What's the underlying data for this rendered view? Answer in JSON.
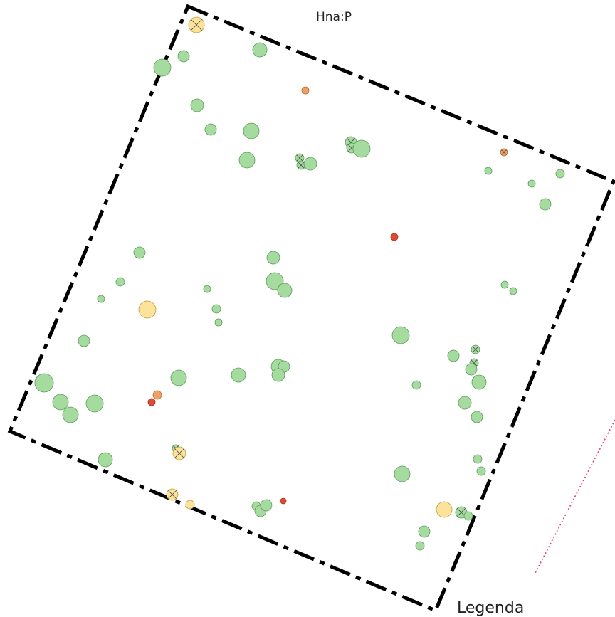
{
  "labels": {
    "plot_code": "Hna:P",
    "legend_title": "Legenda"
  },
  "colors": {
    "background": "#ffffff",
    "boundary": "#000000",
    "healthy_fill": "#a6dba0",
    "healthy_stroke": "#5c9a58",
    "yellow_fill": "#fde39a",
    "yellow_stroke": "#b89a40",
    "orange_fill": "#f0a062",
    "red_fill": "#e34a33",
    "dotted_line": "#e04070",
    "cross": "#555555"
  },
  "tree_categories": [
    "healthy",
    "healthy-crossed",
    "yellow",
    "yellow-crossed",
    "orange",
    "orange-crossed",
    "red"
  ]
}
